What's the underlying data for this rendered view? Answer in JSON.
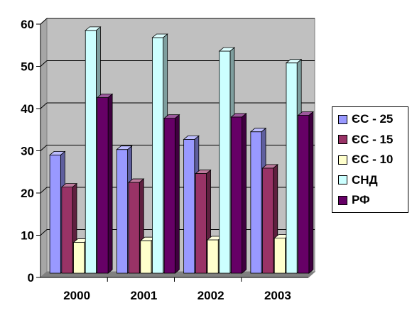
{
  "chart_data": {
    "type": "bar",
    "style": "3d-clustered-column",
    "categories": [
      "2000",
      "2001",
      "2002",
      "2003"
    ],
    "series": [
      {
        "name": "ЄС - 25",
        "color": "#9999ff",
        "values": [
          28,
          29.3,
          31.7,
          33.5
        ]
      },
      {
        "name": "ЄС - 15",
        "color": "#993366",
        "values": [
          20.4,
          21.5,
          23.6,
          24.9
        ]
      },
      {
        "name": "ЄС - 10",
        "color": "#ffffcc",
        "values": [
          7.3,
          7.7,
          7.9,
          8.3
        ]
      },
      {
        "name": "СНД",
        "color": "#ccffff",
        "values": [
          57.5,
          55.8,
          52.6,
          49.8
        ]
      },
      {
        "name": "РФ",
        "color": "#660066",
        "values": [
          41.6,
          36.7,
          37,
          37.4
        ]
      }
    ],
    "y_ticks": [
      "0",
      "10",
      "20",
      "30",
      "40",
      "50",
      "60"
    ],
    "ylim": [
      0,
      60
    ],
    "grid": true,
    "wall_color": "#c0c0c0",
    "legend_position": "right"
  }
}
